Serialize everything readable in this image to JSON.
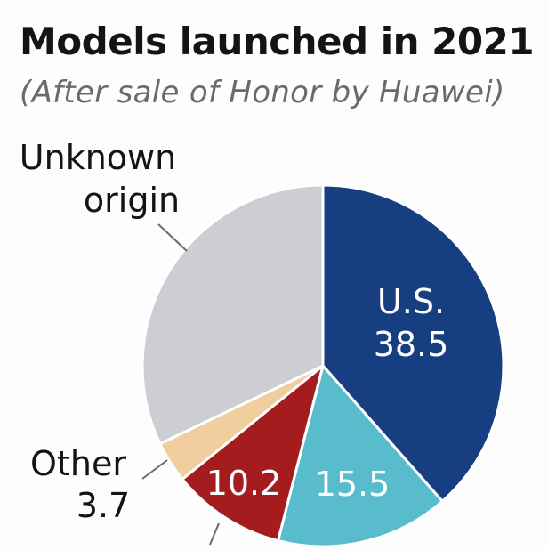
{
  "title": "Models launched in 2021",
  "subtitle": "(After sale of Honor by Huawei)",
  "chart_data": {
    "type": "pie",
    "title": "Models launched in 2021",
    "subtitle": "(After sale of Honor by Huawei)",
    "slices": [
      {
        "label": "U.S.",
        "value": 38.5,
        "value_label": "38.5",
        "color": "#173e80",
        "label_color": "#ffffff",
        "label_position": "inside"
      },
      {
        "label": "",
        "value": 15.5,
        "value_label": "15.5",
        "color": "#59bccd",
        "label_color": "#ffffff",
        "label_position": "inside"
      },
      {
        "label": "",
        "value": 10.2,
        "value_label": "10.2",
        "color": "#a51c1f",
        "label_color": "#ffffff",
        "label_position": "inside"
      },
      {
        "label": "Other",
        "value": 3.7,
        "value_label": "3.7",
        "color": "#f0ce9e",
        "label_color": "#141414",
        "label_position": "outside"
      },
      {
        "label": "Unknown origin",
        "value": 32.1,
        "value_label": "",
        "color": "#cdced3",
        "label_color": "#141414",
        "label_position": "outside"
      }
    ],
    "legend": false
  }
}
